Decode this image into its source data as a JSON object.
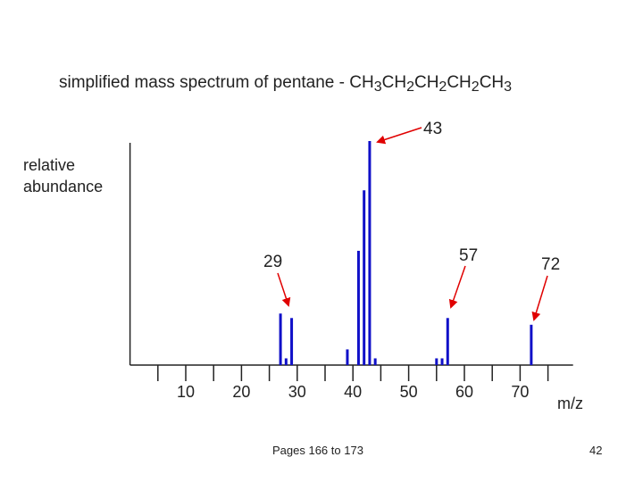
{
  "chart_data": {
    "type": "bar",
    "title": "simplified mass spectrum of pentane  -  CH3CH2CH2CH2CH3",
    "ylabel": "relative abundance",
    "xlabel": "m/z",
    "x": [
      27,
      28,
      29,
      39,
      41,
      42,
      43,
      44,
      55,
      56,
      57,
      72
    ],
    "values": [
      23,
      3,
      21,
      7,
      51,
      78,
      100,
      3,
      3,
      3,
      21,
      18
    ],
    "color": "#1010c8",
    "xlim": [
      0,
      79.5
    ],
    "ylim": [
      0,
      100
    ],
    "xticks": [
      10,
      20,
      30,
      40,
      50,
      60,
      70
    ],
    "xminorticks": [
      5,
      15,
      25,
      35,
      45,
      55,
      65,
      75
    ],
    "annotations": [
      "43",
      "29",
      "57",
      "72"
    ]
  },
  "footer": {
    "text": "Pages 166 to 173",
    "page": "42"
  }
}
